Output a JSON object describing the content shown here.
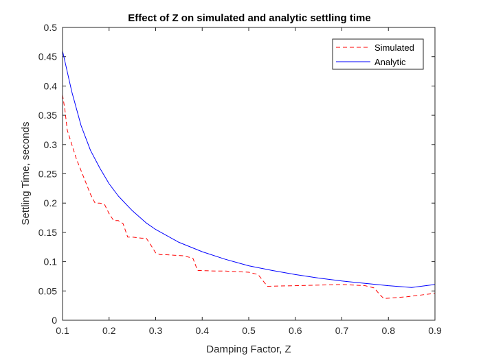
{
  "chart_data": {
    "type": "line",
    "title": "Effect of Z on simulated and analytic settling time",
    "xlabel": "Damping Factor, Z",
    "ylabel": "Settling Time, seconds",
    "xlim": [
      0.1,
      0.9
    ],
    "ylim": [
      0,
      0.5
    ],
    "xticks": [
      0.1,
      0.2,
      0.3,
      0.4,
      0.5,
      0.6,
      0.7,
      0.8,
      0.9
    ],
    "yticks": [
      0,
      0.05,
      0.1,
      0.15,
      0.2,
      0.25,
      0.3,
      0.35,
      0.4,
      0.45,
      0.5
    ],
    "xtick_labels": [
      "0.1",
      "0.2",
      "0.3",
      "0.4",
      "0.5",
      "0.6",
      "0.7",
      "0.8",
      "0.9"
    ],
    "ytick_labels": [
      "0",
      "0.05",
      "0.1",
      "0.15",
      "0.2",
      "0.25",
      "0.3",
      "0.35",
      "0.4",
      "0.45",
      "0.5"
    ],
    "grid": false,
    "box": true,
    "legend_position": "top-right",
    "series": [
      {
        "name": "Simulated",
        "color": "#ff0000",
        "style": "dashed",
        "x": [
          0.1,
          0.105,
          0.11,
          0.12,
          0.13,
          0.14,
          0.15,
          0.16,
          0.17,
          0.18,
          0.19,
          0.2,
          0.21,
          0.22,
          0.23,
          0.24,
          0.25,
          0.27,
          0.28,
          0.29,
          0.3,
          0.31,
          0.32,
          0.36,
          0.37,
          0.38,
          0.39,
          0.43,
          0.45,
          0.5,
          0.52,
          0.53,
          0.54,
          0.6,
          0.7,
          0.75,
          0.77,
          0.78,
          0.79,
          0.84,
          0.9
        ],
        "y": [
          0.385,
          0.36,
          0.325,
          0.3,
          0.275,
          0.255,
          0.235,
          0.215,
          0.2,
          0.2,
          0.198,
          0.182,
          0.17,
          0.17,
          0.165,
          0.142,
          0.142,
          0.14,
          0.14,
          0.128,
          0.115,
          0.112,
          0.112,
          0.11,
          0.108,
          0.106,
          0.085,
          0.084,
          0.084,
          0.082,
          0.078,
          0.068,
          0.058,
          0.059,
          0.061,
          0.059,
          0.055,
          0.045,
          0.037,
          0.04,
          0.046
        ]
      },
      {
        "name": "Analytic",
        "color": "#0000ff",
        "style": "solid",
        "x": [
          0.1,
          0.12,
          0.14,
          0.16,
          0.18,
          0.2,
          0.22,
          0.25,
          0.28,
          0.3,
          0.35,
          0.4,
          0.45,
          0.5,
          0.55,
          0.6,
          0.65,
          0.7,
          0.75,
          0.8,
          0.85,
          0.9
        ],
        "y": [
          0.46,
          0.39,
          0.332,
          0.29,
          0.26,
          0.233,
          0.212,
          0.187,
          0.166,
          0.155,
          0.133,
          0.117,
          0.104,
          0.093,
          0.085,
          0.078,
          0.072,
          0.067,
          0.063,
          0.059,
          0.056,
          0.061
        ]
      }
    ]
  }
}
